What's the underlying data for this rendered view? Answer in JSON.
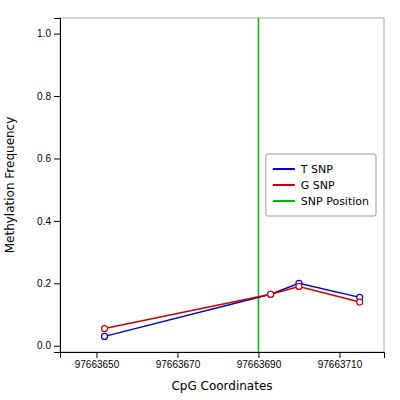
{
  "chart_data": {
    "type": "line",
    "title": "",
    "xlabel": "CpG Coordinates",
    "ylabel": "Methylation Frequency",
    "x": [
      97663652,
      97663693,
      97663700,
      97663715
    ],
    "series": [
      {
        "name": "T SNP",
        "color": "#0000cc",
        "marker": "circle",
        "line_style": "solid",
        "values": [
          0.03,
          0.165,
          0.2,
          0.155
        ]
      },
      {
        "name": "G SNP",
        "color": "#cc0000",
        "marker": "circle",
        "line_style": "solid",
        "values": [
          0.055,
          0.165,
          0.19,
          0.14
        ]
      },
      {
        "name": "SNP Position",
        "type": "vline",
        "color": "#00bb00",
        "line_style": "solid",
        "x": [
          97663690
        ]
      }
    ],
    "xlim": [
      97663641,
      97663721
    ],
    "xticks": [
      97663650,
      97663670,
      97663690,
      97663710
    ],
    "ylim": [
      -0.02,
      1.05
    ],
    "yticks": [
      {
        "value": 0,
        "label": "0.0"
      },
      0.2,
      0.4,
      0.6,
      0.8,
      {
        "value": 1,
        "label": "1.0"
      }
    ],
    "grid": false,
    "legend": "center right"
  }
}
